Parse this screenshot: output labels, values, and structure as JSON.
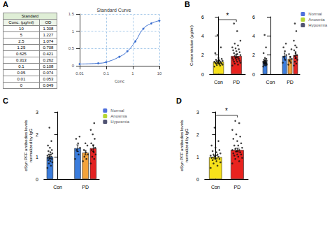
{
  "panels": [
    "A",
    "B",
    "C",
    "D"
  ],
  "table": {
    "title": "Standard",
    "columns": [
      "Conc. (μg/ml)",
      "OD"
    ],
    "rows": [
      [
        10,
        1.308
      ],
      [
        5,
        1.227
      ],
      [
        2.5,
        1.074
      ],
      [
        1.25,
        0.708
      ],
      [
        0.625,
        0.421
      ],
      [
        0.313,
        0.262
      ],
      [
        0.1,
        0.108
      ],
      [
        0.05,
        0.074
      ],
      [
        0.01,
        0.053
      ],
      [
        0,
        0.049
      ]
    ]
  },
  "chart_data": [
    {
      "type": "line",
      "title": "Standard Curve",
      "xlabel": "Conc",
      "x": [
        0.01,
        0.05,
        0.1,
        0.313,
        0.625,
        1.25,
        2.5,
        5,
        10
      ],
      "values": [
        0.053,
        0.074,
        0.108,
        0.262,
        0.421,
        0.708,
        1.074,
        1.227,
        1.308
      ],
      "log": "x",
      "xlim": [
        0.01,
        10
      ],
      "xticks": [
        0.01,
        0.1,
        1,
        10
      ],
      "ylim": [
        0,
        1.5
      ],
      "yticks": [
        0,
        0.5,
        1,
        1.5
      ],
      "grid": true,
      "marker": "circle",
      "color": "#3b6fd0"
    },
    {
      "type": "bar",
      "ylabel": "Concentration (μg/ml)",
      "categories": [
        "Con",
        "PD"
      ],
      "values": [
        1.3,
        1.9
      ],
      "colors": [
        "#f7e11b",
        "#e8231f"
      ],
      "errors": [
        0.15,
        0.2
      ],
      "points": [
        [
          0.8,
          0.9,
          0.95,
          1.0,
          1.05,
          1.1,
          1.1,
          1.15,
          1.2,
          1.2,
          1.25,
          1.3,
          1.3,
          1.35,
          1.4,
          1.45,
          1.5,
          1.6,
          1.7,
          2.2,
          2.8,
          4.1
        ],
        [
          0.9,
          1.0,
          1.1,
          1.2,
          1.3,
          1.3,
          1.4,
          1.5,
          1.5,
          1.6,
          1.7,
          1.7,
          1.8,
          1.9,
          2.0,
          2.1,
          2.2,
          2.3,
          2.4,
          2.5,
          2.6,
          2.7,
          2.8,
          3.0,
          3.2,
          3.5,
          4.5,
          5.3
        ]
      ],
      "ylim": [
        0,
        6
      ],
      "yticks": [
        0,
        2,
        4,
        6
      ],
      "annotations": [
        "*"
      ]
    },
    {
      "type": "bar",
      "categories": [
        "Con",
        "PD"
      ],
      "series": [
        {
          "name": "Normal",
          "color": "#3b7ddd",
          "values": [
            1.3,
            1.9
          ],
          "errors": [
            0.15,
            0.3
          ],
          "points": [
            [
              0.8,
              0.9,
              0.95,
              1.0,
              1.05,
              1.1,
              1.1,
              1.15,
              1.2,
              1.2,
              1.25,
              1.3,
              1.3,
              1.35,
              1.4,
              1.45,
              1.5,
              1.6,
              1.7,
              2.2,
              2.8,
              4.1
            ],
            [
              1.2,
              1.5,
              1.8,
              2.0,
              2.4,
              2.8,
              3.2
            ]
          ]
        },
        {
          "name": "Anosmia",
          "color": "#f3a23a",
          "values": [
            null,
            1.6
          ],
          "errors": [
            null,
            0.25
          ],
          "points": [
            null,
            [
              1.0,
              1.2,
              1.4,
              1.6,
              1.8,
              2.1,
              2.6
            ]
          ]
        },
        {
          "name": "Hyposmia",
          "color": "#e32222",
          "values": [
            null,
            2.0
          ],
          "errors": [
            null,
            0.35
          ],
          "points": [
            null,
            [
              0.9,
              1.1,
              1.3,
              1.5,
              1.7,
              1.9,
              2.0,
              2.2,
              2.5,
              2.8,
              3.0,
              3.5,
              4.5,
              5.3
            ]
          ]
        }
      ],
      "ylim": [
        0,
        6
      ],
      "yticks": [
        0,
        2,
        4,
        6
      ],
      "legend": "top-right"
    },
    {
      "type": "bar",
      "ylabel": "αSyn PFF antibodies levels\nnormalized by IgG",
      "categories": [
        "Con",
        "PD"
      ],
      "series": [
        {
          "name": "Normal",
          "color": "#3b7ddd",
          "values": [
            1.0,
            1.38
          ],
          "errors": [
            0.07,
            0.15
          ],
          "points": [
            [
              0.5,
              0.6,
              0.7,
              0.75,
              0.8,
              0.85,
              0.9,
              0.9,
              0.95,
              1.0,
              1.0,
              1.05,
              1.1,
              1.1,
              1.15,
              1.2,
              1.25,
              1.3,
              1.4,
              1.5,
              1.7,
              2.3
            ],
            [
              0.9,
              1.1,
              1.3,
              1.4,
              1.6,
              1.8,
              1.9
            ]
          ]
        },
        {
          "name": "Anosmia",
          "color": "#f3a23a",
          "values": [
            null,
            1.18
          ],
          "errors": [
            null,
            0.1
          ],
          "points": [
            null,
            [
              0.8,
              0.9,
              1.0,
              1.1,
              1.2,
              1.3,
              1.5,
              1.6
            ]
          ]
        },
        {
          "name": "Hyposmia",
          "color": "#e32222",
          "values": [
            null,
            1.38
          ],
          "errors": [
            null,
            0.15
          ],
          "points": [
            null,
            [
              0.7,
              0.9,
              1.0,
              1.1,
              1.2,
              1.3,
              1.4,
              1.5,
              1.6,
              1.8,
              2.0,
              2.2,
              2.5
            ]
          ]
        }
      ],
      "ylim": [
        0,
        3
      ],
      "yticks": [
        0,
        1,
        2,
        3
      ],
      "legend": "top-right"
    },
    {
      "type": "bar",
      "ylabel": "αSyn PFF antibodies levels\nnormalized by IgG",
      "categories": [
        "Con",
        "PD"
      ],
      "values": [
        0.98,
        1.3
      ],
      "colors": [
        "#f7e11b",
        "#e8231f"
      ],
      "errors": [
        0.07,
        0.08
      ],
      "points": [
        [
          0.5,
          0.6,
          0.7,
          0.75,
          0.8,
          0.85,
          0.9,
          0.9,
          0.95,
          1.0,
          1.0,
          1.05,
          1.1,
          1.1,
          1.15,
          1.2,
          1.25,
          1.3,
          1.4,
          1.5,
          1.7,
          2.3
        ],
        [
          0.7,
          0.8,
          0.9,
          0.95,
          1.0,
          1.05,
          1.1,
          1.1,
          1.15,
          1.2,
          1.25,
          1.3,
          1.3,
          1.35,
          1.4,
          1.5,
          1.5,
          1.6,
          1.7,
          1.8,
          1.9,
          2.0,
          2.2,
          2.5,
          2.6
        ]
      ],
      "ylim": [
        0,
        3
      ],
      "yticks": [
        0,
        1,
        2,
        3
      ],
      "annotations": [
        "*"
      ]
    }
  ]
}
